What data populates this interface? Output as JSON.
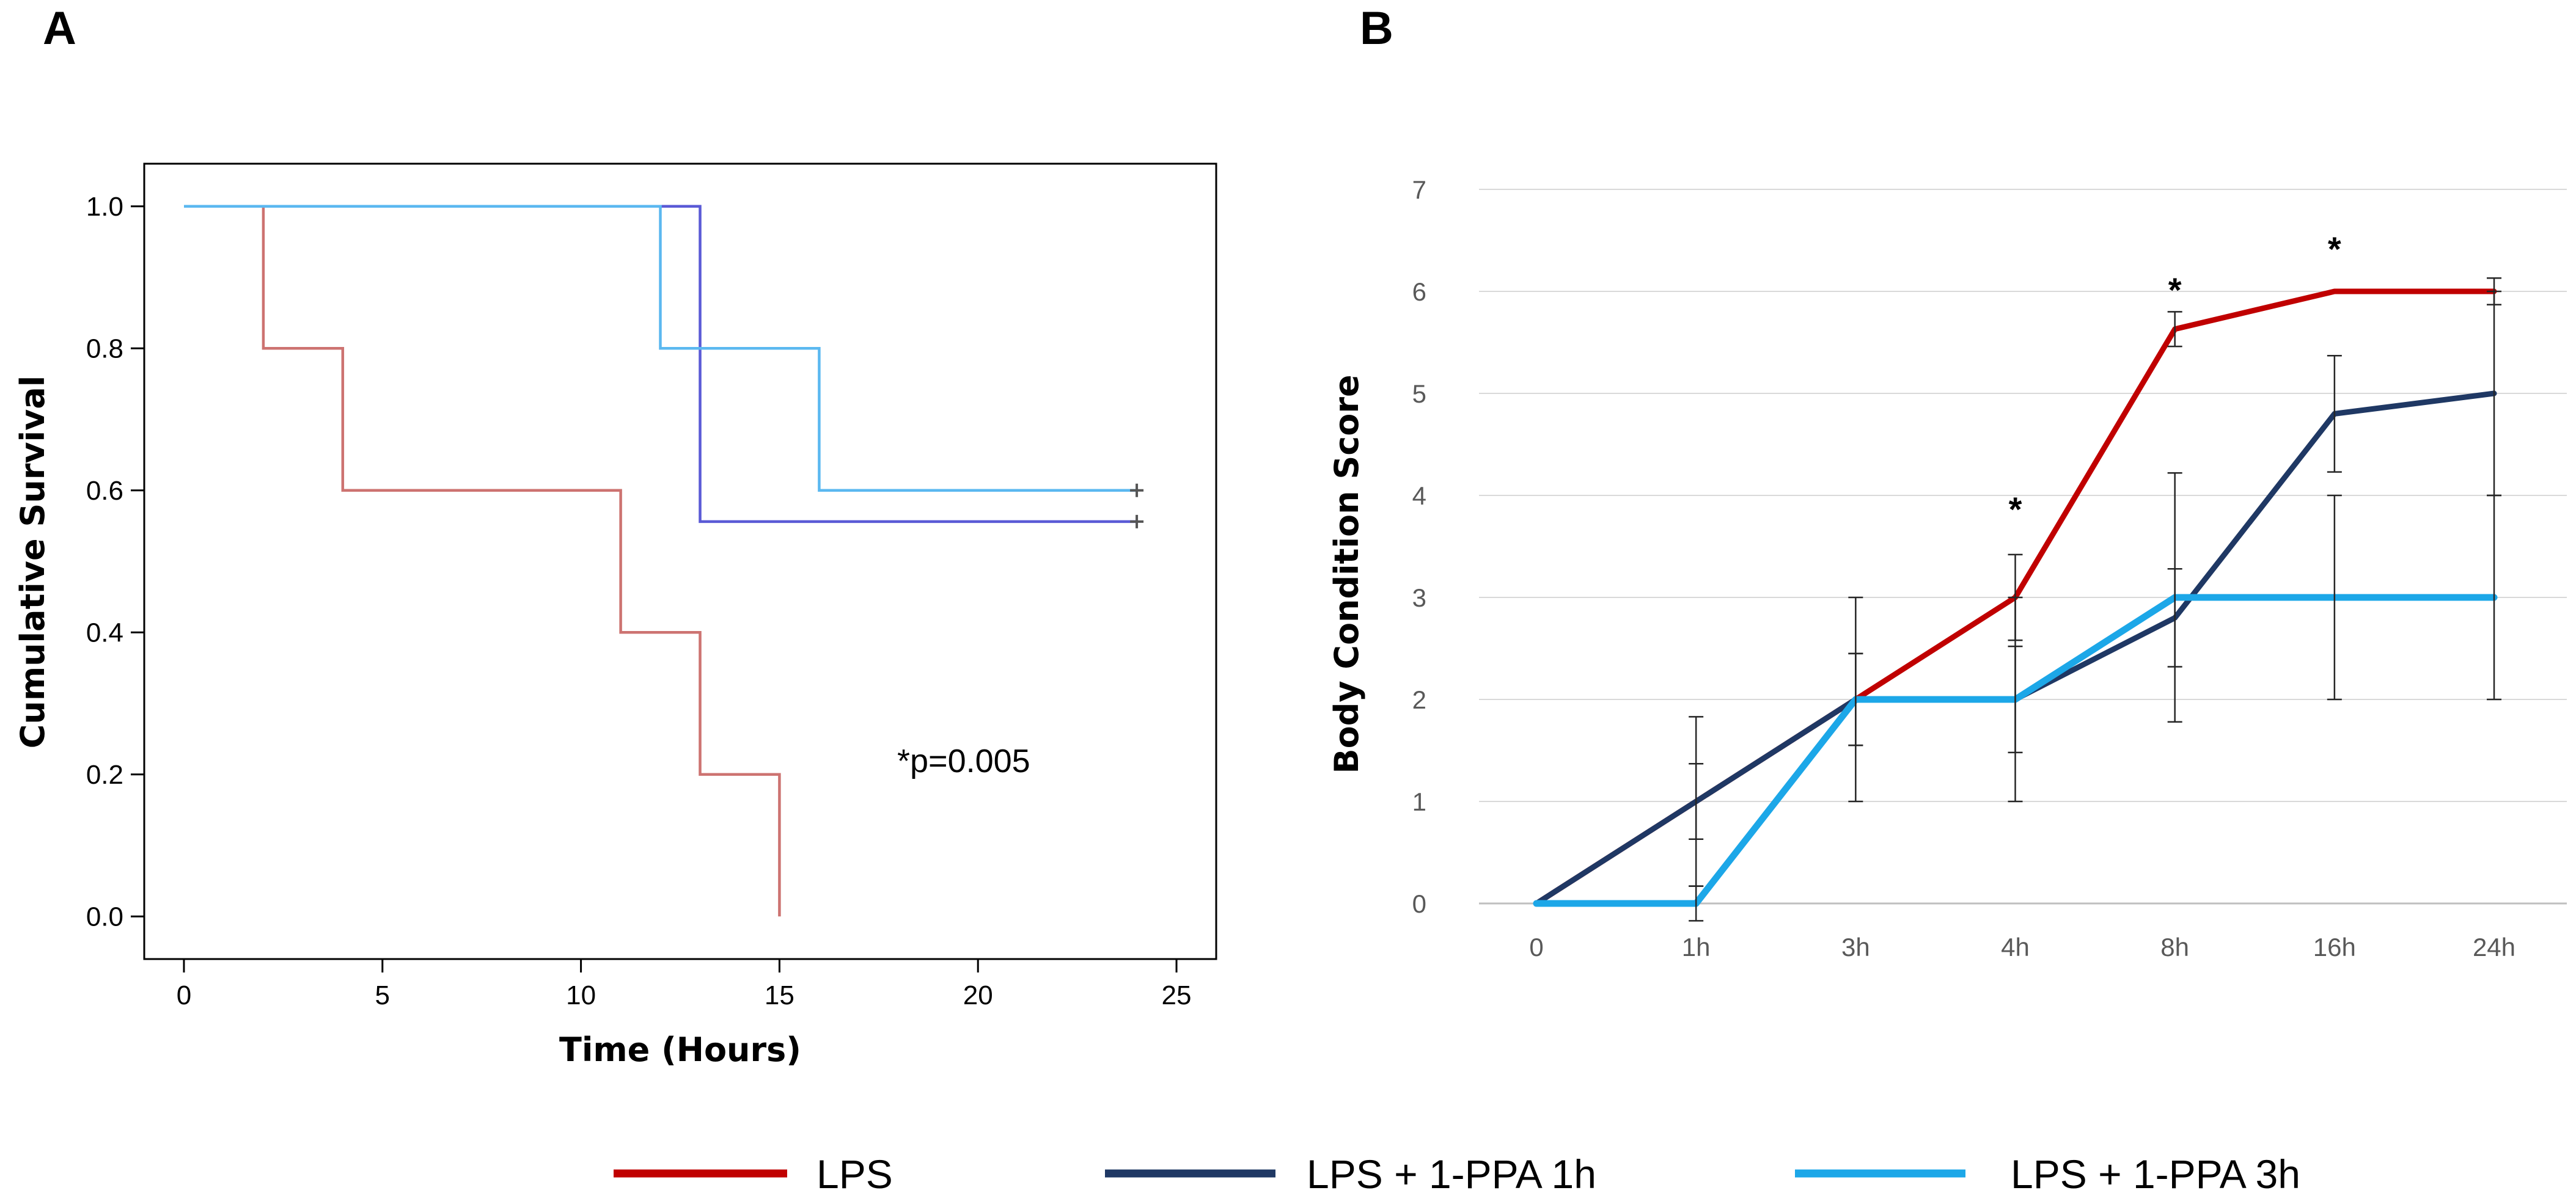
{
  "panels": {
    "a_label": "A",
    "b_label": "B"
  },
  "chart_data": [
    {
      "type": "line",
      "subtype": "kaplan-meier-step",
      "panel": "A",
      "title": "",
      "xlabel": "Time (Hours)",
      "ylabel": "Cumulative Survival",
      "xlim": [
        -1,
        26
      ],
      "ylim": [
        -0.06,
        1.06
      ],
      "x_ticks": [
        0,
        5,
        10,
        15,
        20,
        25
      ],
      "y_ticks": [
        0.0,
        0.2,
        0.4,
        0.6,
        0.8,
        1.0
      ],
      "y_tick_labels": [
        "0.0",
        "0.2",
        "0.4",
        "0.6",
        "0.8",
        "1.0"
      ],
      "grid": false,
      "annotation": "*p=0.005",
      "series": [
        {
          "name": "LPS",
          "color": "#c0504d",
          "opacity": 0.8,
          "points": [
            [
              0,
              1.0
            ],
            [
              2,
              1.0
            ],
            [
              2,
              0.8
            ],
            [
              4,
              0.8
            ],
            [
              4,
              0.6
            ],
            [
              11,
              0.6
            ],
            [
              11,
              0.4
            ],
            [
              13,
              0.4
            ],
            [
              13,
              0.2
            ],
            [
              15,
              0.2
            ],
            [
              15,
              0.0
            ]
          ],
          "censored": []
        },
        {
          "name": "LPS + 1-PPA 1h",
          "color": "#5a5ad6",
          "opacity": 1.0,
          "points": [
            [
              0,
              1.0
            ],
            [
              13,
              1.0
            ],
            [
              13,
              0.556
            ],
            [
              24,
              0.556
            ]
          ],
          "censored": [
            [
              24,
              0.556
            ]
          ]
        },
        {
          "name": "LPS + 1-PPA 3h",
          "color": "#5bb8f0",
          "opacity": 1.0,
          "points": [
            [
              0,
              1.0
            ],
            [
              12,
              1.0
            ],
            [
              12,
              0.8
            ],
            [
              16,
              0.8
            ],
            [
              16,
              0.6
            ],
            [
              24,
              0.6
            ]
          ],
          "censored": [
            [
              24,
              0.6
            ]
          ]
        }
      ]
    },
    {
      "type": "line",
      "panel": "B",
      "title": "",
      "xlabel": "",
      "ylabel": "Body Condition  Score",
      "categories": [
        "0",
        "1h",
        "3h",
        "4h",
        "8h",
        "16h",
        "24h"
      ],
      "ylim": [
        0,
        7
      ],
      "y_ticks": [
        0,
        1,
        2,
        3,
        4,
        5,
        6,
        7
      ],
      "grid": true,
      "significance_markers": [
        {
          "category": "4h",
          "value": 4.0,
          "label": "*"
        },
        {
          "category": "8h",
          "value": 6.15,
          "label": "*"
        },
        {
          "category": "16h",
          "value": 6.55,
          "label": "*"
        }
      ],
      "series": [
        {
          "name": "LPS",
          "color": "#c00000",
          "width": 9,
          "values": [
            0,
            1.0,
            2.0,
            3.0,
            5.63,
            6.0,
            6.0
          ],
          "errors": [
            0,
            0.37,
            0.45,
            0.42,
            0.17,
            0,
            0.13
          ]
        },
        {
          "name": "LPS + 1-PPA 1h",
          "color": "#1f3864",
          "width": 9,
          "values": [
            0,
            1.0,
            2.0,
            2.0,
            2.8,
            4.8,
            5.0
          ],
          "errors": [
            0,
            0.83,
            0.45,
            0.52,
            0.48,
            0.57,
            1.0
          ]
        },
        {
          "name": "LPS + 1-PPA 3h",
          "color": "#1ca7e8",
          "width": 11,
          "values": [
            0,
            0,
            2.0,
            2.0,
            3.0,
            3.0,
            3.0
          ],
          "errors": [
            0,
            0.17,
            1.0,
            1.0,
            1.22,
            1.0,
            1.0
          ]
        }
      ]
    }
  ],
  "legend": {
    "position": "bottom-center",
    "items": [
      {
        "label": "LPS",
        "color": "#c00000"
      },
      {
        "label": "LPS + 1-PPA 1h",
        "color": "#1f3864"
      },
      {
        "label": "LPS + 1-PPA 3h",
        "color": "#1ca7e8"
      }
    ]
  }
}
